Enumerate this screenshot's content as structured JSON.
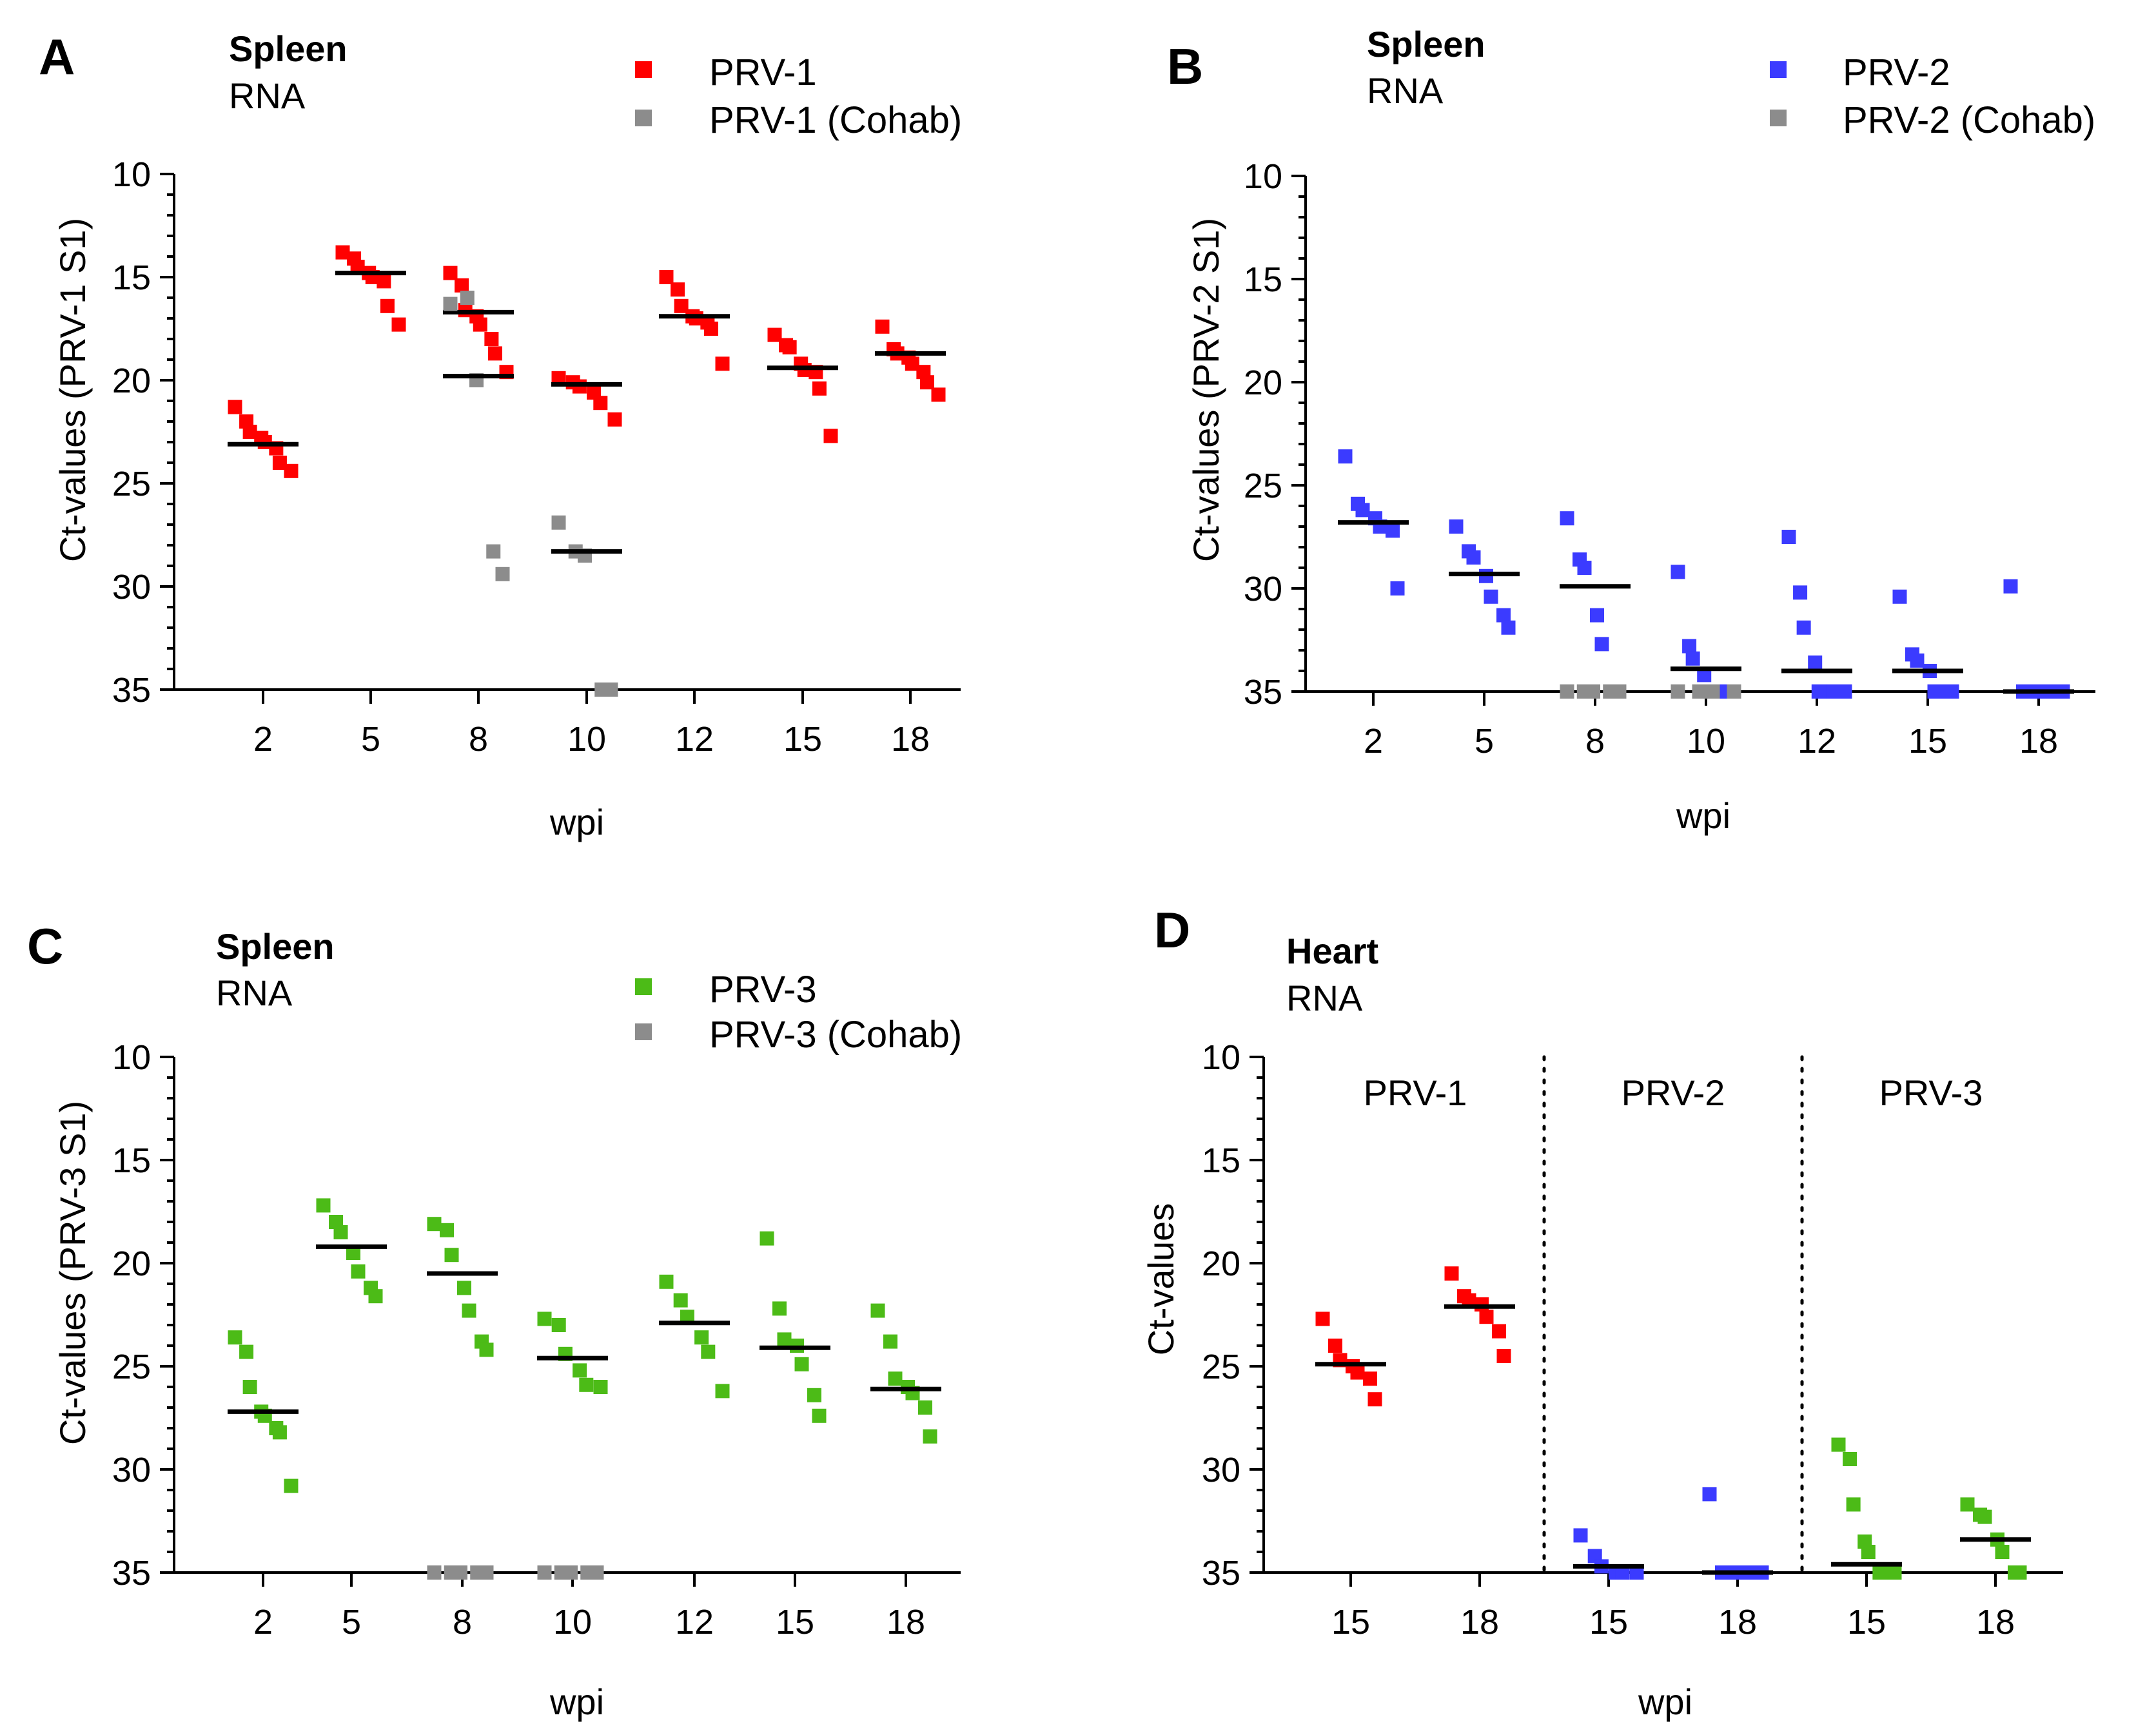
{
  "colors": {
    "prv1": "#ff0000",
    "prv2": "#3b3bff",
    "prv3": "#4cbb17",
    "cohab": "#8c8c8c",
    "median": "#000000"
  },
  "chart_data": [
    {
      "panel": "A",
      "type": "scatter",
      "title": "Spleen",
      "subtitle": "RNA",
      "xlabel": "wpi",
      "ylabel": "Ct-values (PRV-1 S1)",
      "ylim": [
        35,
        10
      ],
      "y_inverted": true,
      "yticks": [
        "10",
        "15",
        "20",
        "25",
        "30",
        "35"
      ],
      "categories": [
        "2",
        "5",
        "8",
        "10",
        "12",
        "15",
        "18"
      ],
      "legend": [
        {
          "label": "PRV-1",
          "color_key": "prv1"
        },
        {
          "label": "PRV-1 (Cohab)",
          "color_key": "cohab"
        }
      ],
      "series": [
        {
          "name": "PRV-1",
          "color_key": "prv1",
          "points": [
            [
              21.3,
              22.0,
              22.5,
              22.8,
              23.0,
              23.3,
              24.0,
              24.4
            ],
            [
              13.8,
              14.1,
              14.5,
              14.8,
              15.0,
              15.2,
              16.4,
              17.3
            ],
            [
              14.8,
              15.4,
              16.6,
              16.9,
              17.3,
              18.0,
              18.7,
              19.6
            ],
            [
              19.9,
              20.1,
              20.3,
              20.6,
              21.1,
              21.9
            ],
            [
              15.0,
              15.6,
              16.4,
              16.9,
              17.0,
              17.2,
              17.5,
              19.2
            ],
            [
              17.8,
              18.3,
              18.4,
              19.2,
              19.5,
              19.6,
              20.4,
              22.7
            ],
            [
              17.4,
              18.5,
              18.7,
              18.9,
              19.2,
              19.6,
              20.1,
              20.7
            ]
          ],
          "medians": [
            23.1,
            14.8,
            16.7,
            20.2,
            16.9,
            19.4,
            18.7
          ]
        },
        {
          "name": "PRV-1 (Cohab)",
          "color_key": "cohab",
          "points": [
            [],
            [],
            [
              16.3,
              16.0,
              20.0,
              28.3,
              29.4
            ],
            [
              26.9,
              28.3,
              28.5,
              35.0,
              35.0
            ],
            [],
            [],
            []
          ],
          "medians": [
            null,
            null,
            19.8,
            28.3,
            null,
            null,
            null
          ]
        }
      ]
    },
    {
      "panel": "B",
      "type": "scatter",
      "title": "Spleen",
      "subtitle": "RNA",
      "xlabel": "wpi",
      "ylabel": "Ct-values (PRV-2 S1)",
      "ylim": [
        35,
        10
      ],
      "y_inverted": true,
      "yticks": [
        "10",
        "15",
        "20",
        "25",
        "30",
        "35"
      ],
      "categories": [
        "2",
        "5",
        "8",
        "10",
        "12",
        "15",
        "18"
      ],
      "legend": [
        {
          "label": "PRV-2",
          "color_key": "prv2"
        },
        {
          "label": "PRV-2 (Cohab)",
          "color_key": "cohab"
        }
      ],
      "series": [
        {
          "name": "PRV-2",
          "color_key": "prv2",
          "points": [
            [
              23.6,
              25.9,
              26.2,
              26.6,
              27.0,
              27.2,
              30.0
            ],
            [
              27.0,
              28.2,
              28.5,
              29.4,
              30.4,
              31.3,
              31.9
            ],
            [
              26.6,
              28.6,
              29.0,
              31.3,
              32.7,
              35.0,
              35.0
            ],
            [
              29.2,
              32.8,
              33.4,
              34.2,
              35.0,
              35.0,
              35.0,
              35.0
            ],
            [
              27.5,
              30.2,
              31.9,
              33.6,
              35.0,
              35.0,
              35.0,
              35.0
            ],
            [
              30.4,
              33.2,
              33.5,
              34.0,
              35.0,
              35.0,
              35.0
            ],
            [
              29.9,
              35.0,
              35.0,
              35.0,
              35.0,
              35.0,
              35.0
            ]
          ],
          "medians": [
            26.8,
            29.3,
            29.9,
            33.9,
            34.0,
            34.0,
            35.0
          ]
        },
        {
          "name": "PRV-2 (Cohab)",
          "color_key": "cohab",
          "points": [
            [],
            [],
            [
              35.0,
              35.0,
              35.0,
              35.0,
              35.0
            ],
            [
              35.0,
              35.0,
              35.0,
              35.0
            ],
            [],
            [],
            []
          ],
          "medians": [
            null,
            null,
            null,
            null,
            null,
            null,
            null
          ]
        }
      ]
    },
    {
      "panel": "C",
      "type": "scatter",
      "title": "Spleen",
      "subtitle": "RNA",
      "xlabel": "wpi",
      "ylabel": "Ct-values (PRV-3 S1)",
      "ylim": [
        35,
        10
      ],
      "y_inverted": true,
      "yticks": [
        "10",
        "15",
        "20",
        "25",
        "30",
        "35"
      ],
      "categories": [
        "2",
        "5",
        "8",
        "10",
        "12",
        "15",
        "18"
      ],
      "legend": [
        {
          "label": "PRV-3",
          "color_key": "prv3"
        },
        {
          "label": "PRV-3 (Cohab)",
          "color_key": "cohab"
        }
      ],
      "series": [
        {
          "name": "PRV-3",
          "color_key": "prv3",
          "points": [
            [
              23.6,
              24.3,
              26.0,
              27.2,
              27.4,
              28.0,
              28.2,
              30.8
            ],
            [
              17.2,
              18.0,
              18.5,
              19.5,
              20.4,
              21.2,
              21.6
            ],
            [
              18.1,
              18.4,
              19.6,
              21.2,
              22.3,
              23.8,
              24.2
            ],
            [
              22.7,
              23.0,
              24.4,
              25.2,
              25.9,
              26.0
            ],
            [
              20.9,
              21.8,
              22.6,
              23.6,
              24.3,
              26.2
            ],
            [
              18.8,
              22.2,
              23.7,
              24.0,
              24.9,
              26.4,
              27.4
            ],
            [
              22.3,
              23.8,
              25.6,
              26.0,
              26.3,
              27.0,
              28.4
            ]
          ],
          "medians": [
            27.2,
            19.2,
            20.5,
            24.6,
            22.9,
            24.1,
            26.1
          ]
        },
        {
          "name": "PRV-3 (Cohab)",
          "color_key": "cohab",
          "points": [
            [],
            [],
            [
              35.0,
              35.0,
              35.0,
              35.0,
              35.0
            ],
            [
              35.0,
              35.0,
              35.0,
              35.0,
              35.0
            ],
            [],
            [],
            []
          ],
          "medians": [
            null,
            null,
            null,
            null,
            null,
            null,
            null
          ]
        }
      ]
    },
    {
      "panel": "D",
      "type": "scatter",
      "title": "Heart",
      "subtitle": "RNA",
      "xlabel": "wpi",
      "ylabel": "Ct-values",
      "ylim": [
        35,
        10
      ],
      "y_inverted": true,
      "yticks": [
        "10",
        "15",
        "20",
        "25",
        "30",
        "35"
      ],
      "categories": [
        "15",
        "18",
        "15",
        "18",
        "15",
        "18"
      ],
      "group_labels": [
        "PRV-1",
        "PRV-2",
        "PRV-3"
      ],
      "series": [
        {
          "name": "PRV-1",
          "color_key": "prv1",
          "columns": [
            0,
            1
          ],
          "points": [
            [
              22.7,
              24.0,
              24.7,
              25.0,
              25.3,
              25.6,
              26.6
            ],
            [
              20.5,
              21.6,
              21.8,
              22.0,
              22.6,
              23.3,
              24.5
            ]
          ],
          "medians": [
            24.9,
            22.1
          ]
        },
        {
          "name": "PRV-2",
          "color_key": "prv2",
          "columns": [
            2,
            3
          ],
          "points": [
            [
              33.2,
              34.2,
              34.7,
              35.0,
              35.0,
              35.0
            ],
            [
              31.2,
              35.0,
              35.0,
              35.0,
              35.0,
              35.0,
              35.0
            ]
          ],
          "medians": [
            34.7,
            35.0
          ]
        },
        {
          "name": "PRV-3",
          "color_key": "prv3",
          "columns": [
            4,
            5
          ],
          "points": [
            [
              28.8,
              29.5,
              31.7,
              33.5,
              34.0,
              35.0,
              35.0,
              35.0
            ],
            [
              31.7,
              32.2,
              32.3,
              33.4,
              34.0,
              35.0,
              35.0
            ]
          ],
          "medians": [
            34.6,
            33.4
          ]
        }
      ]
    }
  ]
}
